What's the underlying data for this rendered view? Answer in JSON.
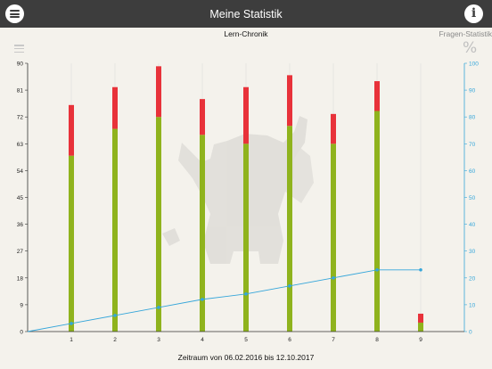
{
  "header": {
    "title": "Meine Statistik",
    "menu_icon": "menu-icon",
    "info_icon": "info-icon",
    "info_glyph": "i"
  },
  "tabs": {
    "lern_chronik": "Lern-Chronik",
    "fragen_statistik": "Fragen-Statistik"
  },
  "icons": {
    "list": "list-icon",
    "percent": "%"
  },
  "colors": {
    "header_bg": "#3d3d3d",
    "green": "#8fb31d",
    "red": "#e8323a",
    "line": "#35a6da",
    "left_axis": "#333333",
    "right_axis": "#35a6da"
  },
  "chart_data": {
    "type": "bar",
    "stacked": true,
    "categories": [
      "1",
      "2",
      "3",
      "4",
      "5",
      "6",
      "7",
      "8",
      "9"
    ],
    "series": [
      {
        "values": [
          59,
          68,
          72,
          66,
          63,
          69,
          63,
          74,
          3
        ],
        "color": "#8fb31d",
        "axis": "left"
      },
      {
        "values": [
          17,
          14,
          17,
          12,
          19,
          17,
          10,
          10,
          3
        ],
        "color": "#e8323a",
        "axis": "left"
      }
    ],
    "line": {
      "x": [
        0,
        1,
        2,
        3,
        4,
        5,
        6,
        7,
        8,
        9
      ],
      "values": [
        0,
        3,
        6,
        9,
        12,
        14,
        17,
        20,
        23,
        23
      ],
      "axis": "right",
      "color": "#35a6da"
    },
    "y_left": {
      "min": 0,
      "max": 90,
      "ticks": [
        0,
        9,
        18,
        27,
        36,
        45,
        54,
        63,
        72,
        81,
        90
      ]
    },
    "y_right": {
      "min": 0,
      "max": 100,
      "ticks": [
        0,
        10,
        20,
        30,
        40,
        50,
        60,
        70,
        80,
        90,
        100
      ]
    },
    "xlabel": "Zeitraum von 06.02.2016 bis 12.10.2017",
    "grid": "vertical"
  }
}
